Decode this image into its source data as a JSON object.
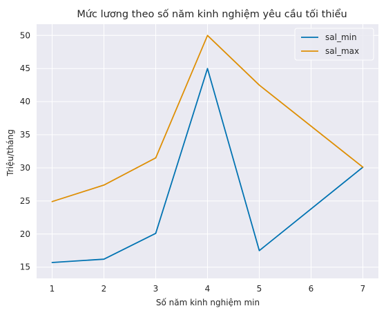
{
  "chart_data": {
    "type": "line",
    "title": "Mức lương theo số năm kinh nghiệm yêu cầu tối thiểu",
    "xlabel": "Số năm kinh nghiệm min",
    "ylabel": "Triệu/tháng",
    "x": [
      1,
      2,
      3,
      4,
      5,
      7
    ],
    "xticks": [
      1,
      2,
      3,
      4,
      5,
      6,
      7
    ],
    "yticks": [
      15,
      20,
      25,
      30,
      35,
      40,
      45,
      50
    ],
    "xlim": [
      0.7,
      7.3
    ],
    "ylim": [
      13.3,
      51.7
    ],
    "grid": true,
    "legend_position": "top-right",
    "background": "#eaeaf2",
    "series": [
      {
        "name": "sal_min",
        "color": "#0173b2",
        "values": [
          15.7,
          16.2,
          20.1,
          45.0,
          17.5,
          30.1
        ]
      },
      {
        "name": "sal_max",
        "color": "#de8f05",
        "values": [
          24.9,
          27.4,
          31.5,
          50.0,
          42.5,
          30.1
        ]
      }
    ]
  }
}
